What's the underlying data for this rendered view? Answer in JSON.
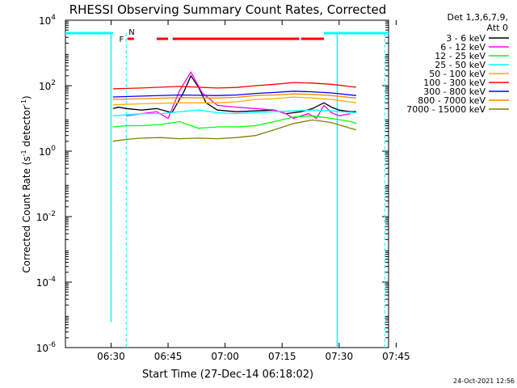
{
  "chart_data": {
    "type": "line",
    "title": "RHESSI Observing Summary Count Rates, Corrected",
    "xlabel": "Start Time (27-Dec-14 06:18:02)",
    "ylabel": "Corrected Count Rate (s^-1 detector^-1)",
    "ylabel_main": "Corrected Count Rate (s",
    "ylabel_mid": " detector",
    "ylabel_end": ")",
    "ylabel_sup": "-1",
    "scale": "log",
    "x_ticks": [
      "06:30",
      "06:45",
      "07:00",
      "07:15",
      "07:30",
      "07:45"
    ],
    "y_ticks": [
      {
        "base": "10",
        "exp": "4",
        "value": 10000
      },
      {
        "base": "10",
        "exp": "2",
        "value": 100
      },
      {
        "base": "10",
        "exp": "0",
        "value": 1
      },
      {
        "base": "10",
        "exp": "-2",
        "value": 0.01
      },
      {
        "base": "10",
        "exp": "-4",
        "value": 0.0001
      },
      {
        "base": "10",
        "exp": "-6",
        "value": 1e-06
      }
    ],
    "ylim": [
      1e-06,
      10000
    ],
    "xlim_minutes_after_0618": [
      0,
      85
    ],
    "legend_title_1": "Det 1,3,6,7,9,",
    "legend_title_2": "Att 0",
    "legend_position": "right",
    "flag_labels": {
      "f": "F",
      "n": "N"
    },
    "series": [
      {
        "name": "3 - 6 keV",
        "color": "#000000",
        "x": [
          12.5,
          14,
          16,
          20,
          24,
          28,
          31,
          33,
          35,
          37,
          40,
          45,
          50,
          55,
          58,
          62,
          65,
          68,
          70,
          72,
          75,
          76.5
        ],
        "y": [
          20,
          22,
          20,
          18,
          20,
          15,
          60,
          200,
          90,
          30,
          18,
          16,
          17,
          18,
          14,
          16,
          20,
          30,
          22,
          18,
          16,
          16
        ]
      },
      {
        "name": "6 - 12 keV",
        "color": "#ff00ff",
        "x": [
          16,
          20,
          24,
          27,
          30,
          33,
          36,
          40,
          45,
          50,
          55,
          58,
          60,
          62,
          64,
          66,
          68,
          70,
          72,
          75
        ],
        "y": [
          12,
          14,
          16,
          10,
          70,
          260,
          60,
          25,
          22,
          20,
          18,
          14,
          10,
          12,
          14,
          10,
          25,
          15,
          12,
          14
        ]
      },
      {
        "name": "12 - 25 keV",
        "color": "#00ff00",
        "x": [
          12.5,
          16,
          20,
          25,
          30,
          35,
          40,
          45,
          50,
          55,
          60,
          65,
          70,
          75,
          76.5
        ],
        "y": [
          5.5,
          6,
          6,
          6.5,
          8,
          5,
          5.5,
          5.5,
          6,
          8,
          11,
          12,
          10,
          8,
          7
        ]
      },
      {
        "name": "25 - 50 keV",
        "color": "#00ffff",
        "x": [
          12.5,
          20,
          25,
          30,
          35,
          40,
          45,
          50,
          55,
          60,
          65,
          70,
          76.5
        ],
        "y": [
          12,
          14,
          14,
          16,
          18,
          15,
          14,
          15,
          16,
          17,
          18,
          17,
          15
        ]
      },
      {
        "name": "50 - 100 keV",
        "color": "#ffaa00",
        "x": [
          12.5,
          20,
          30,
          40,
          45,
          50,
          55,
          60,
          65,
          70,
          76.5
        ],
        "y": [
          26,
          28,
          30,
          30,
          32,
          38,
          40,
          45,
          42,
          38,
          30
        ]
      },
      {
        "name": "100 - 300 keV",
        "color": "#ff0000",
        "x": [
          12.5,
          20,
          25,
          30,
          35,
          40,
          45,
          50,
          55,
          60,
          65,
          70,
          76.5
        ],
        "y": [
          80,
          85,
          90,
          95,
          90,
          85,
          88,
          100,
          110,
          125,
          120,
          110,
          90
        ]
      },
      {
        "name": "300 - 800 keV",
        "color": "#0000ff",
        "x": [
          12.5,
          20,
          30,
          40,
          45,
          50,
          55,
          60,
          65,
          70,
          76.5
        ],
        "y": [
          45,
          48,
          52,
          50,
          52,
          58,
          62,
          68,
          65,
          60,
          50
        ]
      },
      {
        "name": "800 - 7000 keV",
        "color": "#ff8800",
        "x": [
          12.5,
          20,
          30,
          40,
          45,
          50,
          55,
          60,
          65,
          70,
          76.5
        ],
        "y": [
          38,
          40,
          43,
          42,
          44,
          50,
          52,
          56,
          54,
          50,
          42
        ]
      },
      {
        "name": "7000 - 15000 keV",
        "color": "#808000",
        "x": [
          12.5,
          16,
          20,
          25,
          30,
          35,
          40,
          45,
          50,
          55,
          60,
          65,
          70,
          75,
          76.5
        ],
        "y": [
          2,
          2.3,
          2.5,
          2.6,
          2.4,
          2.5,
          2.4,
          2.6,
          3,
          4.5,
          7,
          9,
          7.5,
          5,
          4.5
        ]
      }
    ]
  },
  "footer_date": "24-Oct-2021 12:56"
}
